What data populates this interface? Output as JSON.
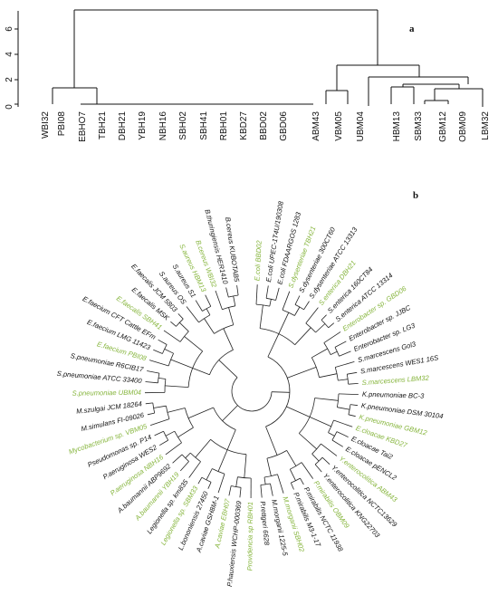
{
  "panel_a": {
    "label": "a",
    "y_axis_ticks": [
      "0",
      "2",
      "4",
      "6"
    ],
    "leaves": [
      "WBI32",
      "PBI08",
      "EBHO7",
      "TBH21",
      "DBH21",
      "YBH19",
      "NBH16",
      "SBH02",
      "SBH41",
      "RBH01",
      "KBD27",
      "BBD02",
      "GBD06",
      "ABM43",
      "VBM05",
      "UBM04",
      "HBM13",
      "SBM33",
      "GBM12",
      "OBM09",
      "LBM32"
    ]
  },
  "panel_b": {
    "label": "b",
    "taxa": [
      {
        "name": "E.coli BBD02",
        "color": "green"
      },
      {
        "name": "E.coli UPEC-1T4U/190308",
        "color": "black"
      },
      {
        "name": "E.coli FDAARGOS 1283",
        "color": "black"
      },
      {
        "name": "S.dysenteriae TBH21",
        "color": "green"
      },
      {
        "name": "S.dysenteriae 300CT60",
        "color": "black"
      },
      {
        "name": "S.dysenteriae ATCC 13313",
        "color": "black"
      },
      {
        "name": "S.enterica DBH21",
        "color": "green"
      },
      {
        "name": "S.enterica 160CT84",
        "color": "black"
      },
      {
        "name": "S.enterica ATCC 13314",
        "color": "black"
      },
      {
        "name": "Enterobacter sp. GBD06",
        "color": "green"
      },
      {
        "name": "Enterobacter sp. JJBC",
        "color": "black"
      },
      {
        "name": "Enterobacter sp. LG3",
        "color": "black"
      },
      {
        "name": "S.marcescens Gol3",
        "color": "black"
      },
      {
        "name": "S.marcescens WES1 16S",
        "color": "black"
      },
      {
        "name": "S.marcescens LBM32",
        "color": "green"
      },
      {
        "name": "K.pneumoniae BC-3",
        "color": "black"
      },
      {
        "name": "K.pneumoniae DSM 30104",
        "color": "black"
      },
      {
        "name": "K.pneumoniae GBM12",
        "color": "green"
      },
      {
        "name": "E.cloacae KBD27",
        "color": "green"
      },
      {
        "name": "E.cloacae Tai2",
        "color": "black"
      },
      {
        "name": "E.cloacae pENCL2",
        "color": "black"
      },
      {
        "name": "Y.enterocolitica ABM43",
        "color": "green"
      },
      {
        "name": "Y.enterocolitica NCTC13629",
        "color": "black"
      },
      {
        "name": "Y.enterocolitica KNG22703",
        "color": "black"
      },
      {
        "name": "P.mirabilis OBM09",
        "color": "green"
      },
      {
        "name": "P.mirabilis NCTC 11938",
        "color": "black"
      },
      {
        "name": "P.mirabilis M3-1-17",
        "color": "black"
      },
      {
        "name": "M.morganii SBH02",
        "color": "green"
      },
      {
        "name": "M.morganii 1225-5",
        "color": "black"
      },
      {
        "name": "P.rettgeri 6628",
        "color": "black"
      },
      {
        "name": "Providencia sp RBH01",
        "color": "green"
      },
      {
        "name": "P.hauxiensis WCHP-000369",
        "color": "black"
      },
      {
        "name": "A.caviae EBH07",
        "color": "green"
      },
      {
        "name": "A.caviae GSH8M-1",
        "color": "black"
      },
      {
        "name": "L.bononiensis 27450",
        "color": "black"
      },
      {
        "name": "Legionella sp. SBM33",
        "color": "green"
      },
      {
        "name": "Legionella sp. km835",
        "color": "black"
      },
      {
        "name": "A.baumannii YBH19",
        "color": "green"
      },
      {
        "name": "A.baumannii ABP9692",
        "color": "black"
      },
      {
        "name": "P.aeruginosa NBH16",
        "color": "green"
      },
      {
        "name": "P.aeruginosa WES2",
        "color": "black"
      },
      {
        "name": "Pseudomonas sp. P14",
        "color": "black"
      },
      {
        "name": "Mycobacterium sp. VBM05",
        "color": "green"
      },
      {
        "name": "M.simulans FI-09026",
        "color": "black"
      },
      {
        "name": "M.szulgai JCM 18264",
        "color": "black"
      },
      {
        "name": "S.pneumoniae UBM04",
        "color": "green"
      },
      {
        "name": "S.pneumoniae ATCC 33400",
        "color": "black"
      },
      {
        "name": "S.pneumoniae R6CIB17",
        "color": "black"
      },
      {
        "name": "E.faecium PBI08",
        "color": "green"
      },
      {
        "name": "E.faecium LMG 11423",
        "color": "black"
      },
      {
        "name": "E.faecium CFT Cattle EFm",
        "color": "black"
      },
      {
        "name": "E.faecalis SBH41",
        "color": "green"
      },
      {
        "name": "E.faecalis MSK",
        "color": "black"
      },
      {
        "name": "E.faecalis JCM 5803",
        "color": "black"
      },
      {
        "name": "S.aureus OS",
        "color": "black"
      },
      {
        "name": "S.aureus S1",
        "color": "black"
      },
      {
        "name": "S.aureus HBM13",
        "color": "green"
      },
      {
        "name": "B.cereus WBI32",
        "color": "green"
      },
      {
        "name": "B.thuringiensis HER1410",
        "color": "black"
      },
      {
        "name": "B.cereus KUBOTAB5",
        "color": "black"
      }
    ]
  }
}
